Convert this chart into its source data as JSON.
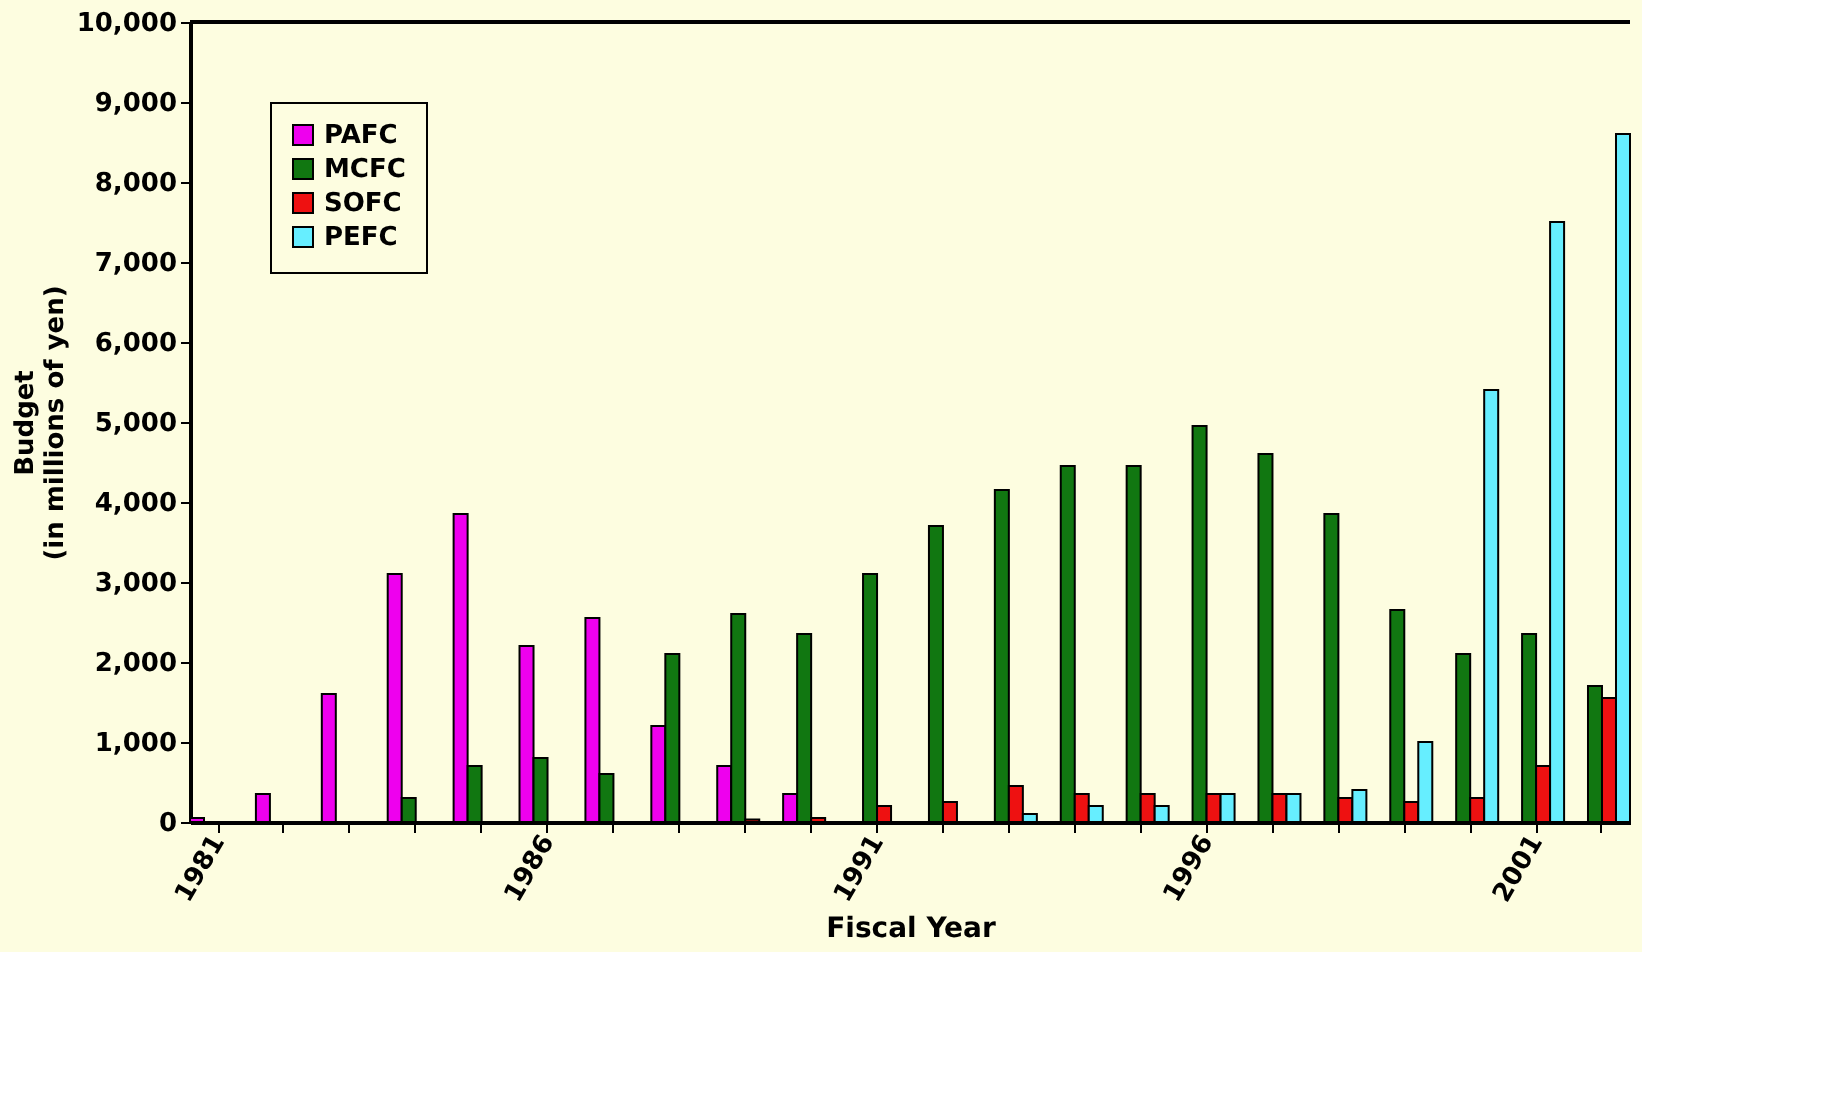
{
  "chart_data": {
    "type": "bar",
    "xlabel": "Fiscal Year",
    "ylabel": "Budget\n(in millions of yen)",
    "categories": [
      "1981",
      null,
      null,
      null,
      null,
      "1986",
      null,
      null,
      null,
      null,
      "1991",
      null,
      null,
      null,
      null,
      "1996",
      null,
      null,
      null,
      null,
      "2001",
      null
    ],
    "series": [
      {
        "name": "PAFC",
        "color": "#ee00ee",
        "values": [
          50,
          350,
          1600,
          3100,
          3850,
          2200,
          2550,
          1200,
          700,
          350,
          null,
          null,
          null,
          null,
          null,
          null,
          null,
          null,
          null,
          null,
          null,
          null
        ]
      },
      {
        "name": "MCFC",
        "color": "#117711",
        "values": [
          null,
          null,
          null,
          300,
          700,
          800,
          600,
          2100,
          2600,
          2350,
          3100,
          3700,
          4150,
          4450,
          4450,
          4950,
          4600,
          3850,
          2650,
          2100,
          2350,
          1700
        ]
      },
      {
        "name": "SOFC",
        "color": "#ee1111",
        "values": [
          null,
          null,
          null,
          null,
          null,
          null,
          null,
          null,
          30,
          50,
          200,
          250,
          450,
          350,
          350,
          350,
          350,
          300,
          250,
          300,
          700,
          1550
        ]
      },
      {
        "name": "PEFC",
        "color": "#66eeff",
        "values": [
          null,
          null,
          null,
          null,
          null,
          null,
          null,
          null,
          null,
          null,
          null,
          null,
          100,
          200,
          200,
          350,
          350,
          400,
          1000,
          5400,
          7500,
          8600
        ]
      }
    ],
    "ylim": [
      0,
      10000
    ],
    "yticks": [
      0,
      {
        "value": 1000,
        "label": "1,000"
      },
      {
        "value": 2000,
        "label": "2,000"
      },
      {
        "value": 3000,
        "label": "3,000"
      },
      {
        "value": 4000,
        "label": "4,000"
      },
      {
        "value": 5000,
        "label": "5,000"
      },
      {
        "value": 6000,
        "label": "6,000"
      },
      {
        "value": 7000,
        "label": "7,000"
      },
      {
        "value": 8000,
        "label": "8,000"
      },
      {
        "value": 9000,
        "label": "9,000"
      },
      {
        "value": 10000,
        "label": "10,000"
      }
    ],
    "grid": false,
    "legend": "top left"
  }
}
